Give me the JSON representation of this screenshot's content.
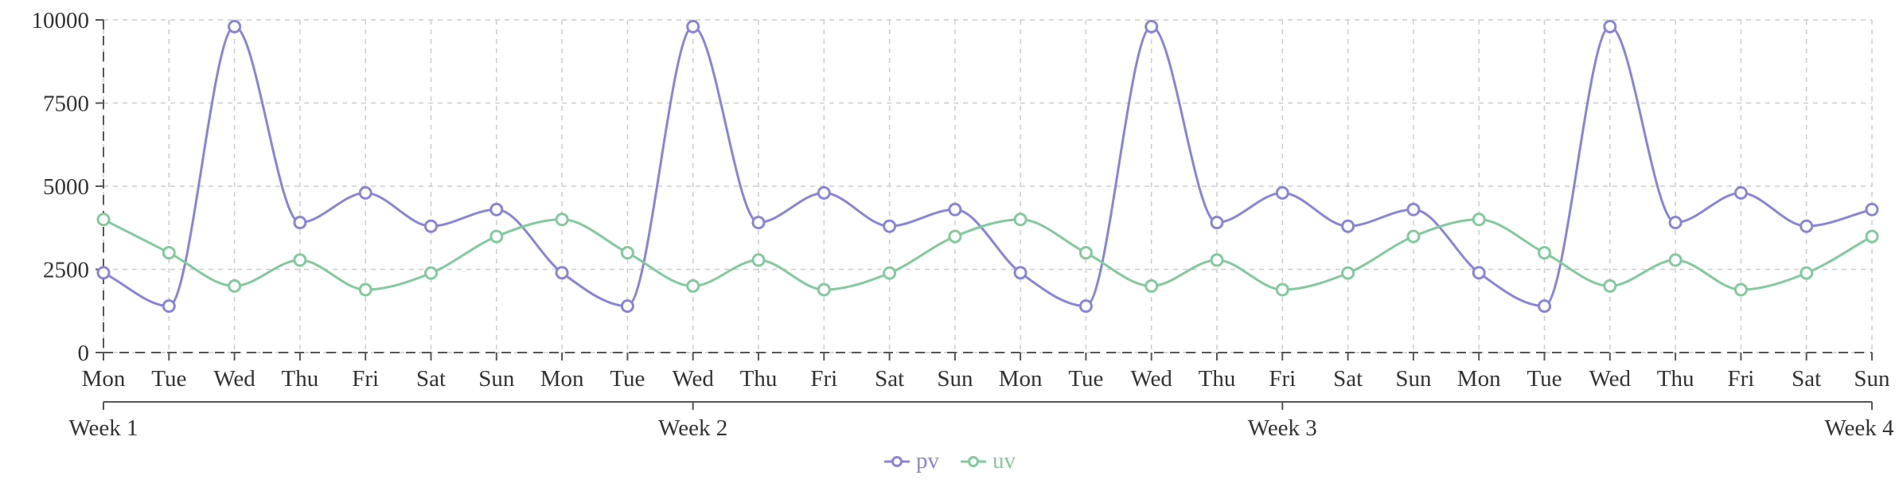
{
  "chart_data": {
    "type": "line",
    "title": "",
    "xlabel": "",
    "ylabel": "",
    "x_labels": [
      "Mon",
      "Tue",
      "Wed",
      "Thu",
      "Fri",
      "Sat",
      "Sun",
      "Mon",
      "Tue",
      "Wed",
      "Thu",
      "Fri",
      "Sat",
      "Sun",
      "Mon",
      "Tue",
      "Wed",
      "Thu",
      "Fri",
      "Sat",
      "Sun",
      "Mon",
      "Tue",
      "Wed",
      "Thu",
      "Fri",
      "Sat",
      "Sun"
    ],
    "week_labels": [
      "Week 1",
      "Week 2",
      "Week 3",
      "Week 4"
    ],
    "yticks": [
      0,
      2500,
      5000,
      7500,
      10000
    ],
    "ylim": [
      0,
      10000
    ],
    "grid": true,
    "grid_color": "#cccccc",
    "axis_color": "#555555",
    "label_color": "#333333",
    "legend_position": "bottom",
    "series": [
      {
        "name": "pv",
        "color": "#8884d8",
        "values": [
          2400,
          1398,
          9800,
          3908,
          4800,
          3800,
          4300,
          2400,
          1398,
          9800,
          3908,
          4800,
          3800,
          4300,
          2400,
          1398,
          9800,
          3908,
          4800,
          3800,
          4300,
          2400,
          1398,
          9800,
          3908,
          4800,
          3800,
          4300
        ]
      },
      {
        "name": "uv",
        "color": "#82ca9d",
        "values": [
          4000,
          3000,
          2000,
          2780,
          1890,
          2390,
          3490,
          4000,
          3000,
          2000,
          2780,
          1890,
          2390,
          3490,
          4000,
          3000,
          2000,
          2780,
          1890,
          2390,
          3490,
          4000,
          3000,
          2000,
          2780,
          1890,
          2390,
          3490
        ]
      }
    ]
  }
}
